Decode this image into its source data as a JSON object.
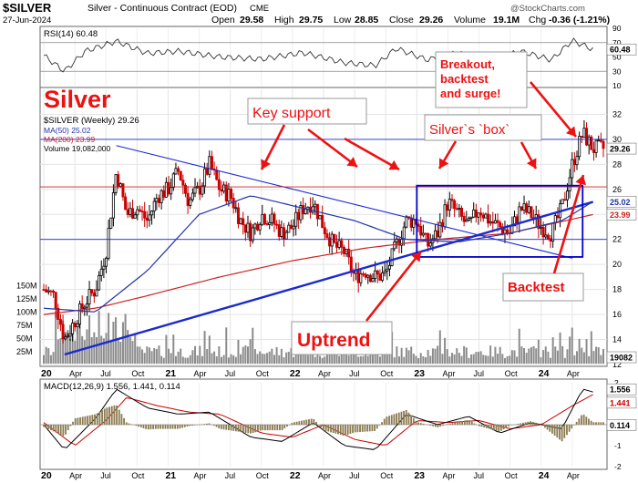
{
  "header": {
    "symbol": "$SILVER",
    "description": "Silver - Continuous Contract (EOD)",
    "exchange": "CME",
    "date": "27-Jun-2024",
    "open_label": "Open",
    "open": "29.58",
    "high_label": "High",
    "high": "29.75",
    "low_label": "Low",
    "low": "28.85",
    "close_label": "Close",
    "close": "29.26",
    "volume_label": "Volume",
    "volume": "19.1M",
    "chg_label": "Chg",
    "chg": "-0.36 (-1.21%)",
    "watermark": "@StockCharts.com"
  },
  "colors": {
    "up_candle": "#000000",
    "down_candle": "#cc0000",
    "ma50": "#2233aa",
    "ma200": "#cc2222",
    "trendline": "#1a2ad0",
    "annotation": "#ee1111",
    "box": "#0000cc",
    "macd": "#000000",
    "signal": "#cc0000",
    "histogram": "#8a7a50",
    "rsi": "#333333",
    "volume_bars": "#8c8c8c"
  },
  "annotations": {
    "title_big": "Silver",
    "key_support": "Key support",
    "silver_box": "Silver`s `box`",
    "breakout": "Breakout,\nbacktest\nand surge!",
    "backtest": "Backtest",
    "uptrend": "Uptrend"
  },
  "chart_data": [
    {
      "type": "line",
      "title": "RSI(14) 60.48",
      "ylim": [
        10,
        90
      ],
      "yticks": [
        10,
        30,
        50,
        70,
        90
      ],
      "levels": [
        30,
        70
      ],
      "last_value": "60.48",
      "last_value_label": "60.48",
      "series": [
        {
          "x": [
            "2020-01",
            "2020-03",
            "2020-05",
            "2020-08",
            "2020-11",
            "2021-02",
            "2021-06",
            "2021-10",
            "2022-02",
            "2022-06",
            "2022-09",
            "2022-11",
            "2023-02",
            "2023-05",
            "2023-08",
            "2023-11",
            "2024-02",
            "2024-04",
            "2024-06"
          ],
          "values": [
            52,
            30,
            58,
            72,
            55,
            58,
            50,
            47,
            56,
            42,
            38,
            62,
            46,
            56,
            44,
            58,
            46,
            73,
            60.48
          ]
        }
      ]
    },
    {
      "type": "candlestick",
      "title": "$SILVER (Weekly) 29.26",
      "ylim": [
        12,
        34
      ],
      "yticks": [
        12,
        14,
        16,
        18,
        20,
        22,
        24,
        26,
        28,
        30,
        32
      ],
      "xticks": [
        "20",
        "Apr",
        "Jul",
        "Oct",
        "21",
        "Apr",
        "Jul",
        "Oct",
        "22",
        "Apr",
        "Jul",
        "Oct",
        "23",
        "Apr",
        "Jul",
        "Oct",
        "24",
        "Apr"
      ],
      "legend": [
        {
          "name": "MA(50) 25.02"
        },
        {
          "name": "MA(200) 23.99"
        },
        {
          "name": "Volume 19,082,000"
        }
      ],
      "value_labels": [
        "29.26",
        "25.02",
        "23.99"
      ],
      "volume_axis": {
        "ticks": [
          "25M",
          "50M",
          "75M",
          "100M",
          "125M",
          "150M"
        ],
        "last": "19082"
      },
      "close_path": {
        "x": [
          "2020-01",
          "2020-02",
          "2020-03",
          "2020-04",
          "2020-05",
          "2020-06",
          "2020-07",
          "2020-08",
          "2020-09",
          "2020-10",
          "2020-11",
          "2020-12",
          "2021-01",
          "2021-02",
          "2021-03",
          "2021-04",
          "2021-05",
          "2021-06",
          "2021-07",
          "2021-08",
          "2021-09",
          "2021-10",
          "2021-11",
          "2021-12",
          "2022-01",
          "2022-02",
          "2022-03",
          "2022-04",
          "2022-05",
          "2022-06",
          "2022-07",
          "2022-08",
          "2022-09",
          "2022-10",
          "2022-11",
          "2022-12",
          "2023-01",
          "2023-02",
          "2023-03",
          "2023-04",
          "2023-05",
          "2023-06",
          "2023-07",
          "2023-08",
          "2023-09",
          "2023-10",
          "2023-11",
          "2023-12",
          "2024-01",
          "2024-02",
          "2024-03",
          "2024-04",
          "2024-05",
          "2024-06"
        ],
        "values": [
          18.0,
          17.5,
          14.0,
          15.5,
          17.0,
          18.0,
          21.0,
          27.5,
          24.0,
          24.5,
          23.5,
          25.5,
          26.0,
          27.5,
          25.0,
          26.0,
          28.0,
          26.0,
          25.5,
          23.5,
          22.5,
          24.0,
          23.5,
          22.5,
          23.0,
          24.5,
          25.0,
          23.0,
          21.5,
          21.0,
          19.0,
          19.5,
          19.0,
          19.2,
          21.5,
          23.5,
          23.5,
          21.5,
          22.5,
          25.0,
          24.0,
          23.0,
          24.5,
          23.5,
          23.0,
          22.5,
          24.5,
          24.0,
          23.0,
          22.5,
          24.5,
          28.0,
          30.5,
          29.26
        ]
      },
      "ma50": {
        "x": [
          "2020-01",
          "2020-06",
          "2020-11",
          "2021-04",
          "2021-09",
          "2022-02",
          "2022-07",
          "2022-12",
          "2023-05",
          "2023-10",
          "2024-03",
          "2024-06"
        ],
        "values": [
          16.5,
          16.2,
          19.5,
          24.0,
          25.5,
          24.5,
          23.5,
          22.0,
          21.8,
          22.5,
          23.5,
          25.02
        ]
      },
      "ma200": {
        "x": [
          "2020-01",
          "2020-06",
          "2020-11",
          "2021-06",
          "2022-01",
          "2022-08",
          "2023-03",
          "2023-10",
          "2024-06"
        ],
        "values": [
          16.0,
          16.5,
          17.5,
          19.0,
          20.3,
          21.3,
          22.0,
          22.5,
          23.99
        ]
      },
      "trendlines": [
        {
          "name": "uptrend",
          "from": [
            "2020-03",
            12.8
          ],
          "to": [
            "2024-06",
            25.0
          ]
        },
        {
          "name": "downtrend",
          "from": [
            "2020-08",
            29.5
          ],
          "to": [
            "2024-04",
            20.5
          ]
        },
        {
          "name": "key support",
          "y": 26.2
        },
        {
          "name": "upper horizontal",
          "y": 30.0
        },
        {
          "name": "lower horizontal",
          "y": 22.0
        }
      ],
      "box": {
        "from": "2023-01",
        "to": "2024-05",
        "ylim": [
          20.6,
          26.3
        ]
      }
    },
    {
      "type": "line",
      "title": "MACD(12,26,9) 1.556, 1.441, 0.114",
      "ylim": [
        -2,
        2
      ],
      "yticks": [
        -2,
        -1,
        0,
        1,
        2
      ],
      "value_labels": [
        "1.556",
        "1.441",
        "0.114"
      ],
      "series": [
        {
          "name": "MACD",
          "x": [
            "2020-01",
            "2020-03",
            "2020-06",
            "2020-08",
            "2020-11",
            "2021-02",
            "2021-05",
            "2021-09",
            "2021-12",
            "2022-03",
            "2022-06",
            "2022-09",
            "2022-12",
            "2023-03",
            "2023-06",
            "2023-09",
            "2023-12",
            "2024-03",
            "2024-05",
            "2024-06"
          ],
          "values": [
            0.0,
            -1.2,
            0.3,
            1.7,
            0.8,
            0.5,
            0.6,
            -0.6,
            -0.8,
            0.1,
            -1.0,
            -1.2,
            0.5,
            0.0,
            0.4,
            -0.4,
            0.1,
            -0.2,
            1.7,
            1.556
          ]
        },
        {
          "name": "Signal",
          "x": [
            "2020-01",
            "2020-04",
            "2020-07",
            "2020-09",
            "2020-12",
            "2021-03",
            "2021-06",
            "2021-10",
            "2022-01",
            "2022-04",
            "2022-07",
            "2022-10",
            "2023-01",
            "2023-04",
            "2023-07",
            "2023-10",
            "2024-01",
            "2024-04",
            "2024-06"
          ],
          "values": [
            0.1,
            -1.0,
            0.2,
            1.3,
            0.9,
            0.6,
            0.5,
            -0.4,
            -0.6,
            0.0,
            -0.7,
            -1.0,
            0.2,
            0.1,
            0.2,
            -0.2,
            0.0,
            0.9,
            1.441
          ]
        }
      ]
    }
  ]
}
